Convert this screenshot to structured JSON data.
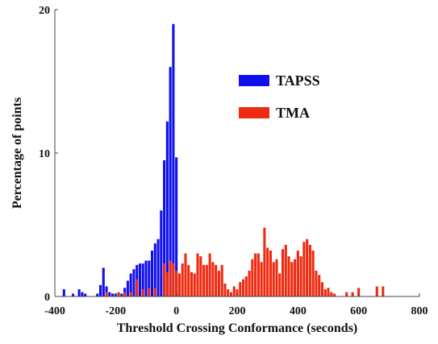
{
  "chart_data": {
    "type": "bar",
    "xlabel": "Threshold Crossing Conformance (seconds)",
    "ylabel": "Percentage of points",
    "xlim": [
      -400,
      800
    ],
    "ylim": [
      0,
      20
    ],
    "xticks": [
      -400,
      -200,
      0,
      200,
      400,
      600,
      800
    ],
    "xtick_labels": [
      "-400",
      "-200",
      "0",
      "200",
      "400",
      "600",
      "800"
    ],
    "yticks": [
      0,
      10,
      20
    ],
    "ytick_labels": [
      "0",
      "10",
      "20"
    ],
    "grid": false,
    "legend_position": "upper-right-center",
    "series": [
      {
        "name": "TAPSS",
        "color": "#1010ee",
        "bin_width": 10,
        "points": [
          [
            -370,
            0.5
          ],
          [
            -340,
            0.2
          ],
          [
            -320,
            0.5
          ],
          [
            -310,
            0.3
          ],
          [
            -300,
            0.2
          ],
          [
            -260,
            0.2
          ],
          [
            -250,
            0.8
          ],
          [
            -240,
            2.0
          ],
          [
            -230,
            0.7
          ],
          [
            -220,
            0.3
          ],
          [
            -210,
            0.2
          ],
          [
            -200,
            0.2
          ],
          [
            -190,
            0.2
          ],
          [
            -180,
            0.2
          ],
          [
            -170,
            0.6
          ],
          [
            -160,
            1.1
          ],
          [
            -150,
            1.6
          ],
          [
            -140,
            1.9
          ],
          [
            -130,
            2.2
          ],
          [
            -120,
            2.3
          ],
          [
            -110,
            2.3
          ],
          [
            -100,
            2.5
          ],
          [
            -90,
            2.5
          ],
          [
            -80,
            3.2
          ],
          [
            -70,
            3.7
          ],
          [
            -60,
            4.0
          ],
          [
            -50,
            6.0
          ],
          [
            -40,
            9.5
          ],
          [
            -30,
            12.2
          ],
          [
            -20,
            16.0
          ],
          [
            -10,
            19.0
          ],
          [
            0,
            9.7
          ],
          [
            10,
            0.3
          ]
        ]
      },
      {
        "name": "TMA",
        "color": "#ee2a10",
        "bin_width": 10,
        "points": [
          [
            -230,
            0.3
          ],
          [
            -190,
            0.3
          ],
          [
            -170,
            0.3
          ],
          [
            -150,
            0.3
          ],
          [
            -130,
            1.2
          ],
          [
            -110,
            0.5
          ],
          [
            -90,
            0.6
          ],
          [
            -70,
            0.6
          ],
          [
            -40,
            2.3
          ],
          [
            -30,
            1.7
          ],
          [
            -20,
            2.5
          ],
          [
            -10,
            2.3
          ],
          [
            0,
            1.8
          ],
          [
            10,
            1.6
          ],
          [
            20,
            2.3
          ],
          [
            30,
            3.0
          ],
          [
            40,
            2.2
          ],
          [
            50,
            1.7
          ],
          [
            60,
            1.6
          ],
          [
            70,
            3.0
          ],
          [
            80,
            2.8
          ],
          [
            90,
            2.2
          ],
          [
            100,
            2.2
          ],
          [
            110,
            3.0
          ],
          [
            120,
            2.4
          ],
          [
            130,
            2.2
          ],
          [
            140,
            1.8
          ],
          [
            150,
            2.2
          ],
          [
            160,
            0.9
          ],
          [
            170,
            0.5
          ],
          [
            180,
            0.3
          ],
          [
            190,
            0.7
          ],
          [
            200,
            0.5
          ],
          [
            210,
            1.0
          ],
          [
            220,
            1.2
          ],
          [
            230,
            1.4
          ],
          [
            240,
            1.8
          ],
          [
            250,
            2.6
          ],
          [
            260,
            3.0
          ],
          [
            270,
            3.0
          ],
          [
            280,
            2.4
          ],
          [
            290,
            4.8
          ],
          [
            300,
            3.4
          ],
          [
            310,
            3.2
          ],
          [
            320,
            2.4
          ],
          [
            330,
            2.6
          ],
          [
            340,
            1.6
          ],
          [
            350,
            3.3
          ],
          [
            360,
            3.6
          ],
          [
            370,
            2.8
          ],
          [
            380,
            2.4
          ],
          [
            390,
            2.6
          ],
          [
            400,
            3.2
          ],
          [
            410,
            2.8
          ],
          [
            420,
            3.8
          ],
          [
            430,
            4.0
          ],
          [
            440,
            3.6
          ],
          [
            450,
            3.2
          ],
          [
            460,
            1.8
          ],
          [
            470,
            1.5
          ],
          [
            480,
            1.0
          ],
          [
            490,
            0.5
          ],
          [
            500,
            0.6
          ],
          [
            510,
            0.3
          ],
          [
            520,
            0.2
          ],
          [
            560,
            0.3
          ],
          [
            580,
            0.3
          ],
          [
            600,
            0.6
          ],
          [
            660,
            0.7
          ],
          [
            680,
            0.7
          ]
        ]
      }
    ]
  }
}
